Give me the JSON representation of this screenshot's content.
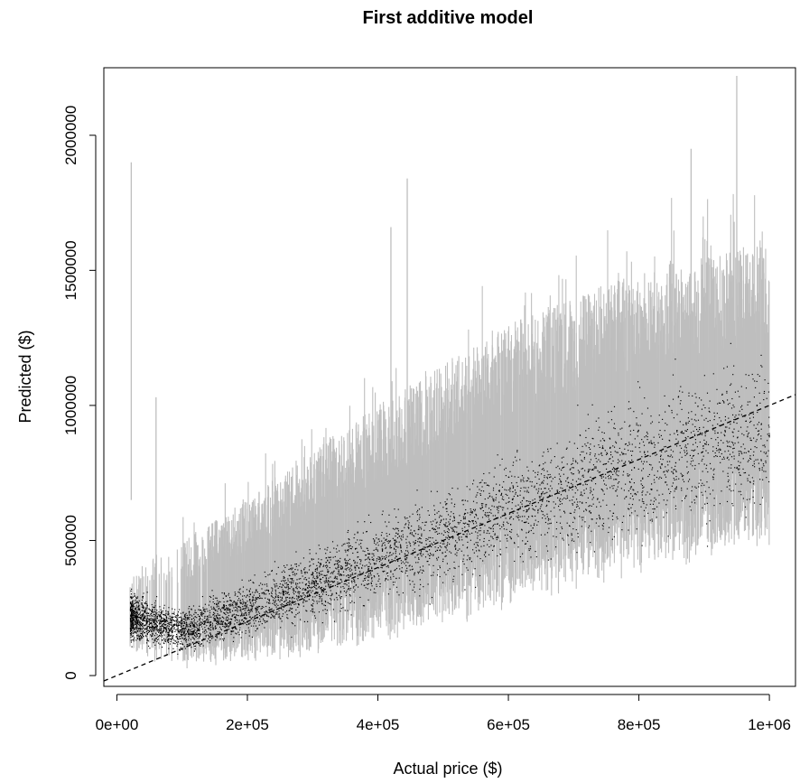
{
  "chart_data": {
    "type": "scatter",
    "title": "First additive model",
    "xlabel": "Actual price ($)",
    "ylabel": "Predicted ($)",
    "xlim": [
      -20000,
      1040000
    ],
    "ylim": [
      -40000,
      2250000
    ],
    "x_ticks": [
      0,
      200000,
      400000,
      600000,
      800000,
      1000000
    ],
    "x_tick_labels": [
      "0e+00",
      "2e+05",
      "4e+05",
      "6e+05",
      "8e+05",
      "1e+06"
    ],
    "y_ticks": [
      0,
      500000,
      1000000,
      1500000,
      2000000
    ],
    "y_tick_labels": [
      "0",
      "500000",
      "1000000",
      "1500000",
      "2000000"
    ],
    "reference_line": {
      "style": "dashed",
      "intercept": 0,
      "slope": 1
    },
    "interval_color": "#bebebe",
    "point_color": "#000000",
    "grid": false,
    "series": [
      {
        "kind": "prediction-interval-summary",
        "x": [
          20000,
          100000,
          200000,
          300000,
          400000,
          500000,
          600000,
          700000,
          800000,
          900000,
          1000000
        ],
        "center": [
          220000,
          170000,
          250000,
          340000,
          430000,
          520000,
          620000,
          700000,
          780000,
          850000,
          900000
        ],
        "lower": [
          90000,
          60000,
          90000,
          140000,
          190000,
          260000,
          330000,
          400000,
          470000,
          520000,
          560000
        ],
        "upper": [
          400000,
          500000,
          650000,
          850000,
          1000000,
          1150000,
          1300000,
          1400000,
          1500000,
          1550000,
          1600000
        ]
      }
    ],
    "notable_spikes": [
      {
        "x": 22000,
        "upper": 1900000,
        "lower": 650000
      },
      {
        "x": 60000,
        "upper": 1030000,
        "lower": 150000
      },
      {
        "x": 420000,
        "upper": 1660000,
        "lower": 250000
      },
      {
        "x": 445000,
        "upper": 1840000,
        "lower": 300000
      },
      {
        "x": 880000,
        "upper": 1950000,
        "lower": 600000
      },
      {
        "x": 950000,
        "upper": 2220000,
        "lower": 700000
      }
    ]
  }
}
